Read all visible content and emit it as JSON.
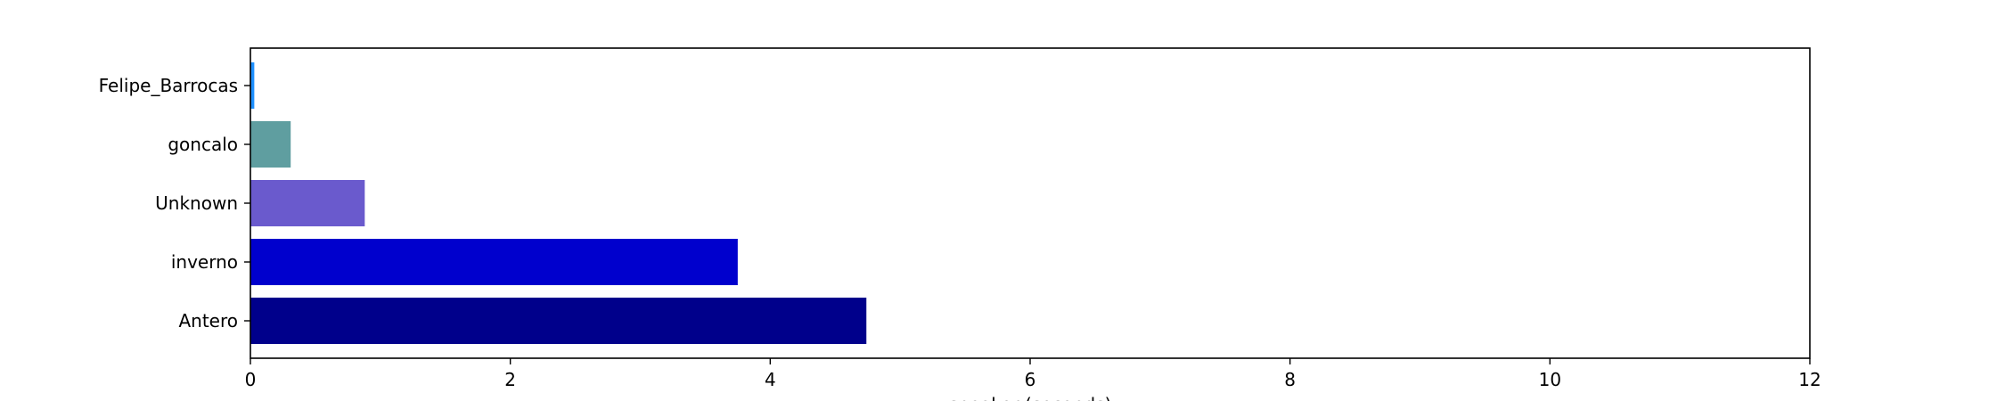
{
  "chart_data": {
    "type": "bar",
    "orientation": "horizontal",
    "categories": [
      "Antero",
      "inverno",
      "Unknown",
      "goncalo",
      "Felipe_Barrocas"
    ],
    "values": [
      4.74,
      3.75,
      0.88,
      0.31,
      0.03
    ],
    "colors": [
      "#00008b",
      "#0000cd",
      "#6a5acd",
      "#5f9ea0",
      "#1e90ff"
    ],
    "title": "",
    "xlabel": "speaker (seconds)",
    "ylabel": "",
    "xlim": [
      0,
      12
    ],
    "xticks": [
      0,
      2,
      4,
      6,
      8,
      10,
      12
    ],
    "grid": false,
    "legend": "none"
  }
}
